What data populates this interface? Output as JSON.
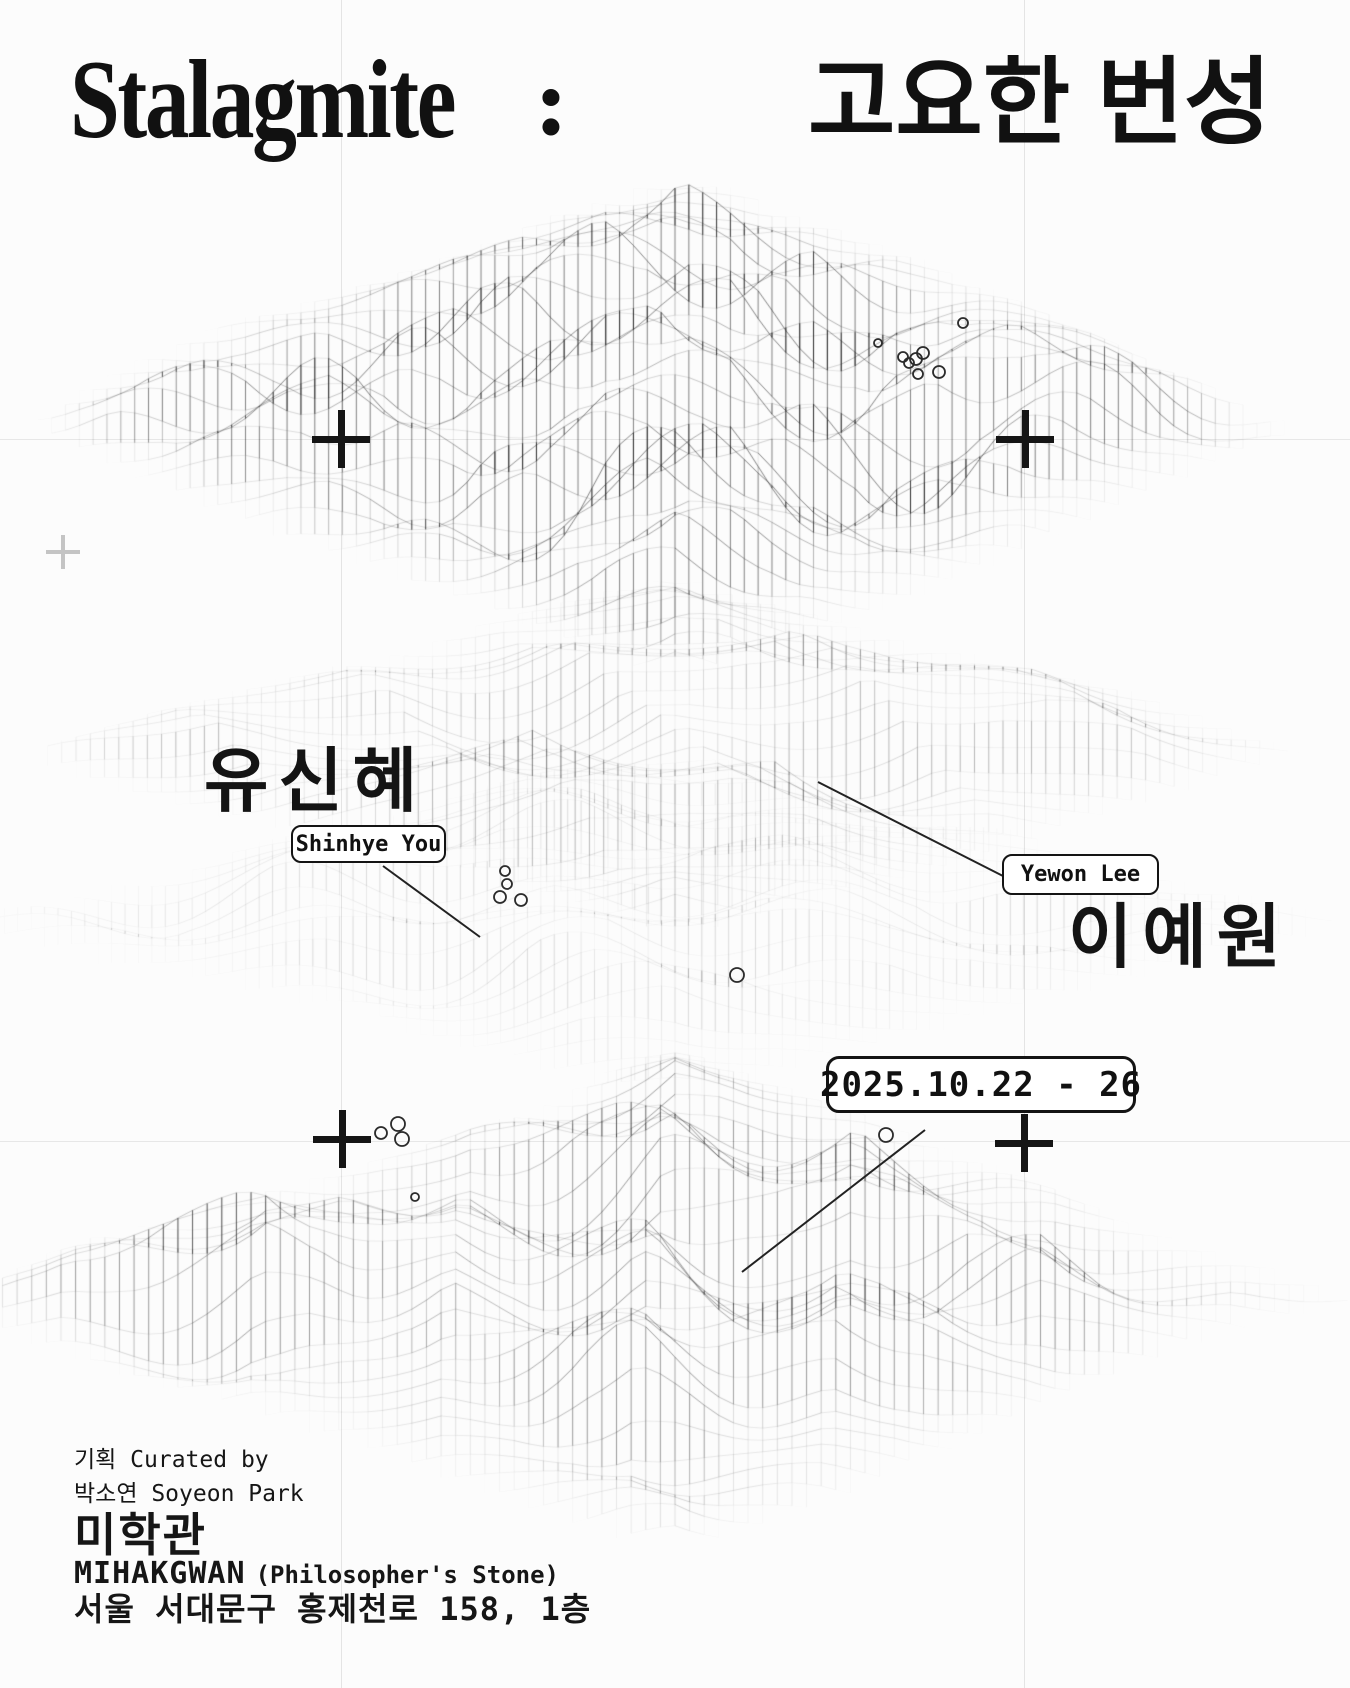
{
  "colors": {
    "background": "#fcfcfc",
    "ink": "#111111",
    "mesh_line": "#1a1a1a",
    "grid_line": "#e4e4e4",
    "faint_mark": "#c4c4c4"
  },
  "header": {
    "title_en": "Stalagmite",
    "title_colon": ":",
    "title_ko": "고요한 번성"
  },
  "artists": {
    "artist1": {
      "name_ko": "유신혜",
      "name_en": "Shinhye You"
    },
    "artist2": {
      "name_ko": "이예원",
      "name_en": "Yewon Lee"
    }
  },
  "exhibition": {
    "dates": "2025.10.22 - 26"
  },
  "credits": {
    "curated_by": "기획 Curated by",
    "curator": "박소연 Soyeon Park"
  },
  "venue": {
    "name_ko": "미학관",
    "name_en": "MIHAKGWAN",
    "name_note": "(Philosopher's Stone)",
    "address": "서울 서대문구 홍제천로 158, 1층"
  }
}
